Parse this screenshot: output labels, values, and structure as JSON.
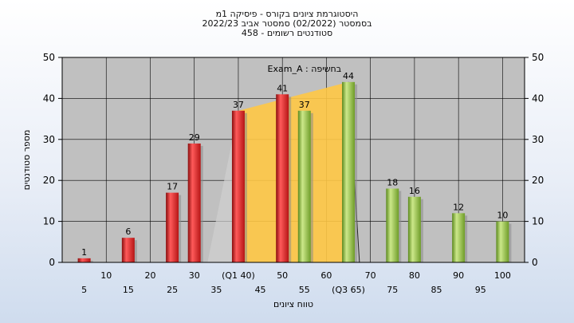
{
  "title_lines": [
    "היסטוגרמת ציונים בקורס - פיסיקה 1מ",
    "בסמסטר  (02/2022)  סמסטר אביב 2022/23",
    "סטודנטים רשומים - 458"
  ],
  "colors": {
    "plot_bg": "#c0c0c0",
    "red": "#e02020",
    "green": "#8cbf3a",
    "area": "#ffc845",
    "grid": "#000000"
  },
  "chart_data": {
    "type": "bar",
    "title": "היסטוגרמת ציונים בקורס - פיסיקה 1מ",
    "annotation": "בחשיפה : Exam_A",
    "xlabel": "טווח ציונים",
    "ylabel": "מספר סטודנטים",
    "ylim": [
      0,
      50
    ],
    "yticks": [
      0,
      10,
      20,
      30,
      40,
      50
    ],
    "grid": true,
    "x_tick_labels_upper": [
      "10",
      "20",
      "30",
      "(Q1 40)",
      "50",
      "60",
      "70",
      "80",
      "90",
      "100"
    ],
    "x_tick_labels_lower": [
      "5",
      "15",
      "25",
      "35",
      "45",
      "55",
      "(Q3 65)",
      "75",
      "85",
      "95"
    ],
    "bars": [
      {
        "x": 5,
        "value": 1,
        "color": "red"
      },
      {
        "x": 15,
        "value": 6,
        "color": "red"
      },
      {
        "x": 25,
        "value": 17,
        "color": "red"
      },
      {
        "x": 30,
        "value": 29,
        "color": "red"
      },
      {
        "x": 40,
        "value": 37,
        "color": "red"
      },
      {
        "x": 50,
        "value": 41,
        "color": "red"
      },
      {
        "x": 55,
        "value": 37,
        "color": "green"
      },
      {
        "x": 65,
        "value": 44,
        "color": "green"
      },
      {
        "x": 75,
        "value": 18,
        "color": "green"
      },
      {
        "x": 80,
        "value": 16,
        "color": "green"
      },
      {
        "x": 90,
        "value": 12,
        "color": "green"
      },
      {
        "x": 100,
        "value": 10,
        "color": "green"
      }
    ],
    "iqr_area": {
      "x_start": 40,
      "x_end": 65,
      "y_start": 37,
      "y_end": 44
    }
  }
}
